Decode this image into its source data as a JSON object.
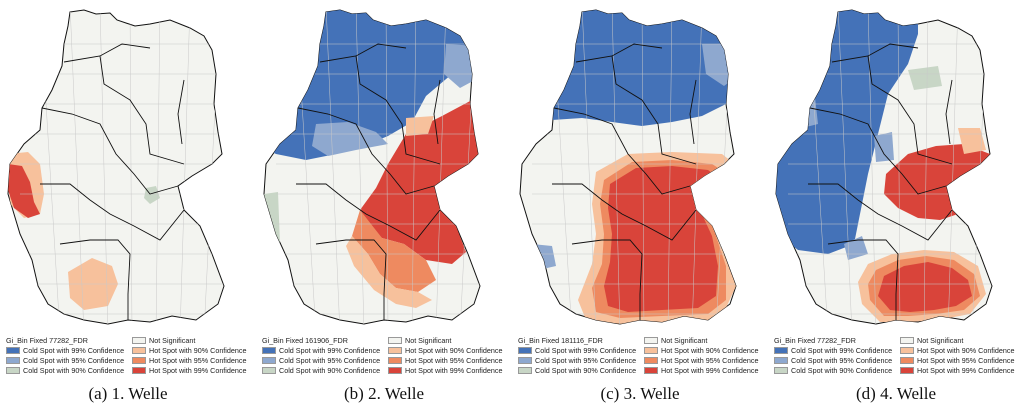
{
  "colors": {
    "cold99": "#4472b8",
    "cold95": "#8ea8cf",
    "cold90": "#c8d6c6",
    "ns": "#f3f4f0",
    "hot90": "#f7c19c",
    "hot95": "#ee8a60",
    "hot99": "#d9443a",
    "border": "#111111",
    "district": "#c9c9c9"
  },
  "legend_labels": {
    "not_significant": "Not Significant",
    "cold99": "Cold Spot with 99% Confidence",
    "cold95": "Cold Spot with 95% Confidence",
    "cold90": "Cold Spot with 90% Confidence",
    "hot90": "Hot Spot with 90% Confidence",
    "hot95": "Hot Spot with 95% Confidence",
    "hot99": "Hot Spot with 99% Confidence"
  },
  "panels": [
    {
      "id": "a",
      "caption": "(a)  1. Welle",
      "legend_title": "Gi_Bin Fixed 77282_FDR"
    },
    {
      "id": "b",
      "caption": "(b)  2. Welle",
      "legend_title": "Gi_Bin Fixed 161906_FDR"
    },
    {
      "id": "c",
      "caption": "(c)  3. Welle",
      "legend_title": "Gi_Bin Fixed 181116_FDR"
    },
    {
      "id": "d",
      "caption": "(d)  4. Welle",
      "legend_title": "Gi_Bin Fixed 77282_FDR"
    }
  ]
}
